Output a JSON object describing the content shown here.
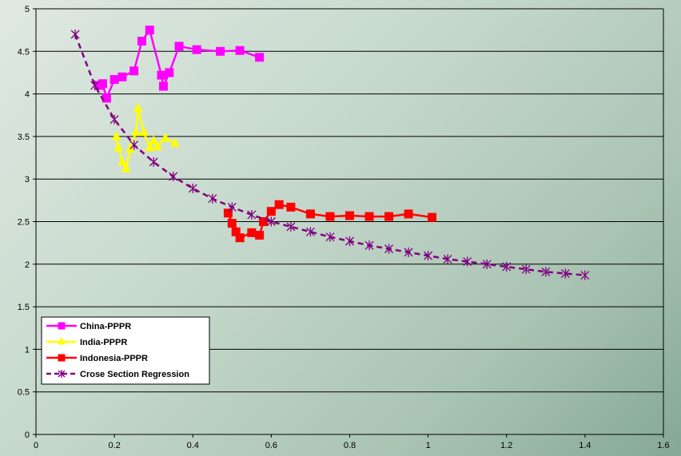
{
  "chart_data": {
    "type": "line",
    "title": "",
    "xlabel": "",
    "ylabel": "",
    "xlim": [
      0,
      1.6
    ],
    "ylim": [
      0,
      5
    ],
    "x_ticks": [
      "0",
      "0.2",
      "0.4",
      "0.6",
      "0.8",
      "1",
      "1.2",
      "1.4",
      "1.6"
    ],
    "y_ticks": [
      "0",
      "0.5",
      "1",
      "1.5",
      "2",
      "2.5",
      "3",
      "3.5",
      "4",
      "4.5",
      "5"
    ],
    "grid": "horizontal",
    "legend_position": "bottom-left",
    "series": [
      {
        "name": "China-PPPR",
        "color": "#ff00ff",
        "marker": "square",
        "x": [
          0.16,
          0.17,
          0.18,
          0.2,
          0.22,
          0.25,
          0.27,
          0.29,
          0.32,
          0.325,
          0.34,
          0.365,
          0.41,
          0.47,
          0.52,
          0.57
        ],
        "y": [
          4.1,
          4.12,
          3.95,
          4.17,
          4.2,
          4.27,
          4.62,
          4.75,
          4.22,
          4.09,
          4.25,
          4.56,
          4.52,
          4.5,
          4.51,
          4.43
        ]
      },
      {
        "name": "India-PPPR",
        "color": "#ffff00",
        "marker": "triangle",
        "x": [
          0.205,
          0.21,
          0.22,
          0.23,
          0.24,
          0.255,
          0.26,
          0.275,
          0.29,
          0.3,
          0.31,
          0.33,
          0.355
        ],
        "y": [
          3.5,
          3.37,
          3.2,
          3.12,
          3.35,
          3.55,
          3.83,
          3.55,
          3.37,
          3.45,
          3.38,
          3.48,
          3.42
        ]
      },
      {
        "name": "Indonesia-PPPR",
        "color": "#ff0000",
        "marker": "square",
        "x": [
          0.49,
          0.5,
          0.51,
          0.52,
          0.55,
          0.57,
          0.58,
          0.6,
          0.62,
          0.65,
          0.7,
          0.75,
          0.8,
          0.85,
          0.9,
          0.95,
          1.01
        ],
        "y": [
          2.6,
          2.48,
          2.38,
          2.31,
          2.37,
          2.34,
          2.5,
          2.62,
          2.7,
          2.67,
          2.59,
          2.56,
          2.57,
          2.56,
          2.56,
          2.59,
          2.55
        ]
      },
      {
        "name": "Crose Section Regression",
        "color": "#800080",
        "marker": "star",
        "line_style": "dashed",
        "x": [
          0.1,
          0.15,
          0.2,
          0.25,
          0.3,
          0.35,
          0.4,
          0.45,
          0.5,
          0.55,
          0.6,
          0.65,
          0.7,
          0.75,
          0.8,
          0.85,
          0.9,
          0.95,
          1.0,
          1.05,
          1.1,
          1.15,
          1.2,
          1.25,
          1.3,
          1.35,
          1.4
        ],
        "y": [
          4.7,
          4.1,
          3.7,
          3.4,
          3.2,
          3.03,
          2.89,
          2.77,
          2.67,
          2.58,
          2.5,
          2.44,
          2.38,
          2.32,
          2.27,
          2.22,
          2.18,
          2.14,
          2.1,
          2.06,
          2.03,
          2.0,
          1.97,
          1.94,
          1.91,
          1.89,
          1.87
        ]
      }
    ]
  }
}
